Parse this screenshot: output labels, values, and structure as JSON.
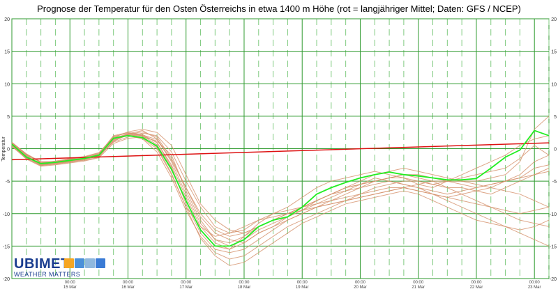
{
  "chart_data": {
    "type": "line",
    "title": "Prognose der Temperatur für den Osten Österreichs in etwa 1400 m Höhe (rot = langjähriger Mittel; Daten: GFS / NCEP)",
    "ylabel": "Temperatur",
    "ylim": [
      -20,
      20
    ],
    "yticks": [
      20,
      15,
      10,
      5,
      0,
      -5,
      -10,
      -15,
      -20
    ],
    "xlim_days": [
      14.0,
      23.25
    ],
    "x_tick_labels": [
      {
        "time": "00:00",
        "date": "15 Mar"
      },
      {
        "time": "00:00",
        "date": "16 Mar"
      },
      {
        "time": "00:00",
        "date": "17 Mar"
      },
      {
        "time": "00:00",
        "date": "18 Mar"
      },
      {
        "time": "00:00",
        "date": "19 Mar"
      },
      {
        "time": "00:00",
        "date": "20 Mar"
      },
      {
        "time": "00:00",
        "date": "21 Mar"
      },
      {
        "time": "00:00",
        "date": "22 Mar"
      },
      {
        "time": "00:00",
        "date": "23 Mar"
      }
    ],
    "grid": true,
    "colors": {
      "mean": "#dd1111",
      "main": "#22ee22",
      "ensemble": "#d4906a",
      "grid_major": "#2e9a2e",
      "grid_minor": "#7fca7f"
    },
    "series": [
      {
        "role": "main",
        "x": [
          14.0,
          14.25,
          14.5,
          14.75,
          15.0,
          15.25,
          15.5,
          15.75,
          16.0,
          16.25,
          16.5,
          16.75,
          17.0,
          17.25,
          17.5,
          17.75,
          18.0,
          18.25,
          18.5,
          18.75,
          19.0,
          19.25,
          19.5,
          19.75,
          20.0,
          20.25,
          20.5,
          20.75,
          21.0,
          21.25,
          21.5,
          21.75,
          22.0,
          22.25,
          22.5,
          22.75,
          23.0,
          23.25
        ],
        "y": [
          0.7,
          -1.3,
          -2.3,
          -2.1,
          -1.8,
          -1.5,
          -1.0,
          1.6,
          2.0,
          1.7,
          0.4,
          -3.2,
          -8.0,
          -12.5,
          -15.0,
          -15.0,
          -14.0,
          -12.0,
          -11.0,
          -10.5,
          -9.0,
          -7.0,
          -6.0,
          -5.2,
          -4.5,
          -4.0,
          -3.6,
          -4.0,
          -4.2,
          -4.5,
          -4.8,
          -4.8,
          -4.6,
          -3.0,
          -1.3,
          -0.2,
          2.8,
          2.0
        ]
      },
      {
        "role": "mean",
        "x": [
          14.0,
          23.25
        ],
        "y": [
          -1.7,
          0.9
        ]
      },
      {
        "role": "ensemble",
        "x": [
          14.0,
          14.25,
          14.5,
          14.75,
          15.0,
          15.25,
          15.5,
          15.75,
          16.0,
          16.25,
          16.5,
          16.75,
          17.0,
          17.25,
          17.5,
          17.75,
          18.0,
          18.25,
          18.5,
          18.75,
          19.0,
          19.25,
          19.5,
          19.75,
          20.0,
          20.25,
          20.5,
          20.75,
          21.0,
          21.25,
          21.5,
          21.75,
          22.0,
          22.25,
          22.5,
          22.75,
          23.0,
          23.25
        ],
        "y": [
          0.8,
          -1.0,
          -2.0,
          -2.0,
          -1.6,
          -1.3,
          -0.8,
          2.0,
          2.5,
          2.2,
          0.9,
          -2.5,
          -7.5,
          -12.0,
          -14.5,
          -15.5,
          -13.5,
          -11.5,
          -10.0,
          -9.0,
          -7.5,
          -6.0,
          -5.0,
          -4.5,
          -4.0,
          -3.5,
          -4.0,
          -4.5,
          -5.5,
          -6.0,
          -5.0,
          -4.0,
          -3.0,
          -2.0,
          -1.0,
          0.5,
          1.5,
          2.0
        ]
      },
      {
        "role": "ensemble",
        "x": [
          14.0,
          14.25,
          14.5,
          14.75,
          15.0,
          15.25,
          15.5,
          15.75,
          16.0,
          16.25,
          16.5,
          16.75,
          17.0,
          17.25,
          17.5,
          17.75,
          18.0,
          18.25,
          18.5,
          18.75,
          19.0,
          19.25,
          19.5,
          19.75,
          20.0,
          20.25,
          20.5,
          20.75,
          21.0,
          21.25,
          21.5,
          21.75,
          22.0,
          22.25,
          22.5,
          22.75,
          23.0,
          23.25
        ],
        "y": [
          0.5,
          -1.5,
          -2.5,
          -2.3,
          -2.0,
          -1.8,
          -1.3,
          1.3,
          2.3,
          2.8,
          1.5,
          -1.8,
          -6.0,
          -10.5,
          -13.0,
          -14.0,
          -14.5,
          -13.0,
          -12.0,
          -10.5,
          -9.5,
          -8.0,
          -7.0,
          -6.5,
          -6.0,
          -5.5,
          -5.0,
          -5.5,
          -6.0,
          -6.5,
          -7.0,
          -6.5,
          -6.0,
          -5.5,
          -5.0,
          -4.5,
          -3.0,
          -2.5
        ]
      },
      {
        "role": "ensemble",
        "x": [
          14.0,
          14.25,
          14.5,
          14.75,
          15.0,
          15.25,
          15.5,
          15.75,
          16.0,
          16.25,
          16.5,
          16.75,
          17.0,
          17.25,
          17.5,
          17.75,
          18.0,
          18.25,
          18.5,
          18.75,
          19.0,
          19.25,
          19.5,
          19.75,
          20.0,
          20.25,
          20.5,
          20.75,
          21.0,
          21.25,
          21.5,
          21.75,
          22.0,
          22.25,
          22.5,
          22.75,
          23.0,
          23.25
        ],
        "y": [
          1.0,
          -0.8,
          -2.2,
          -1.9,
          -1.5,
          -1.2,
          -0.6,
          1.8,
          2.0,
          1.5,
          -0.5,
          -4.5,
          -9.5,
          -13.5,
          -16.0,
          -17.0,
          -16.5,
          -15.0,
          -13.5,
          -12.0,
          -11.0,
          -10.0,
          -9.0,
          -8.0,
          -7.5,
          -7.0,
          -6.5,
          -6.0,
          -6.5,
          -7.0,
          -7.5,
          -8.0,
          -8.5,
          -9.0,
          -9.5,
          -10.0,
          -9.5,
          -9.0
        ]
      },
      {
        "role": "ensemble",
        "x": [
          14.0,
          14.25,
          14.5,
          14.75,
          15.0,
          15.25,
          15.5,
          15.75,
          16.0,
          16.25,
          16.5,
          16.75,
          17.0,
          17.25,
          17.5,
          17.75,
          18.0,
          18.25,
          18.5,
          18.75,
          19.0,
          19.25,
          19.5,
          19.75,
          20.0,
          20.25,
          20.5,
          20.75,
          21.0,
          21.25,
          21.5,
          21.75,
          22.0,
          22.25,
          22.5,
          22.75,
          23.0,
          23.25
        ],
        "y": [
          0.6,
          -1.2,
          -2.6,
          -2.4,
          -2.1,
          -1.7,
          -1.1,
          1.0,
          1.8,
          2.4,
          2.0,
          -0.5,
          -5.0,
          -9.0,
          -12.0,
          -13.0,
          -12.5,
          -11.0,
          -10.0,
          -9.5,
          -9.0,
          -8.5,
          -8.0,
          -7.0,
          -6.0,
          -5.0,
          -4.5,
          -4.0,
          -4.5,
          -5.0,
          -6.0,
          -7.0,
          -8.0,
          -9.0,
          -10.0,
          -11.0,
          -11.5,
          -12.0
        ]
      },
      {
        "role": "ensemble",
        "x": [
          14.0,
          14.25,
          14.5,
          14.75,
          15.0,
          15.25,
          15.5,
          15.75,
          16.0,
          16.25,
          16.5,
          16.75,
          17.0,
          17.25,
          17.5,
          17.75,
          18.0,
          18.25,
          18.5,
          18.75,
          19.0,
          19.25,
          19.5,
          19.75,
          20.0,
          20.25,
          20.5,
          20.75,
          21.0,
          21.25,
          21.5,
          21.75,
          22.0,
          22.25,
          22.5,
          22.75,
          23.0,
          23.25
        ],
        "y": [
          0.9,
          -0.9,
          -2.1,
          -2.2,
          -1.9,
          -1.4,
          -0.9,
          1.5,
          2.2,
          2.0,
          1.0,
          -2.8,
          -8.5,
          -13.0,
          -15.5,
          -16.0,
          -15.5,
          -14.0,
          -12.5,
          -11.0,
          -10.0,
          -9.0,
          -8.5,
          -8.0,
          -7.0,
          -6.0,
          -5.5,
          -5.0,
          -5.0,
          -5.5,
          -6.0,
          -6.0,
          -6.5,
          -7.0,
          -6.0,
          -5.0,
          -4.0,
          -3.0
        ]
      },
      {
        "role": "ensemble",
        "x": [
          14.0,
          14.25,
          14.5,
          14.75,
          15.0,
          15.25,
          15.5,
          15.75,
          16.0,
          16.25,
          16.5,
          16.75,
          17.0,
          17.25,
          17.5,
          17.75,
          18.0,
          18.25,
          18.5,
          18.75,
          19.0,
          19.25,
          19.5,
          19.75,
          20.0,
          20.25,
          20.5,
          20.75,
          21.0,
          21.25,
          21.5,
          21.75,
          22.0,
          22.25,
          22.5,
          22.75,
          23.0,
          23.25
        ],
        "y": [
          0.4,
          -1.6,
          -2.7,
          -2.5,
          -2.2,
          -1.9,
          -1.4,
          0.8,
          1.6,
          1.8,
          1.2,
          -1.0,
          -6.5,
          -11.0,
          -14.0,
          -15.0,
          -14.0,
          -12.5,
          -11.5,
          -10.5,
          -9.5,
          -8.5,
          -7.5,
          -6.5,
          -5.5,
          -4.5,
          -5.0,
          -5.5,
          -6.0,
          -7.0,
          -8.0,
          -9.0,
          -10.0,
          -11.0,
          -12.0,
          -13.0,
          -14.0,
          -15.0
        ]
      },
      {
        "role": "ensemble",
        "x": [
          14.0,
          14.25,
          14.5,
          14.75,
          15.0,
          15.25,
          15.5,
          15.75,
          16.0,
          16.25,
          16.5,
          16.75,
          17.0,
          17.25,
          17.5,
          17.75,
          18.0,
          18.25,
          18.5,
          18.75,
          19.0,
          19.25,
          19.5,
          19.75,
          20.0,
          20.25,
          20.5,
          20.75,
          21.0,
          21.25,
          21.5,
          21.75,
          22.0,
          22.25,
          22.5,
          22.75,
          23.0,
          23.25
        ],
        "y": [
          0.7,
          -1.1,
          -2.4,
          -2.2,
          -1.7,
          -1.6,
          -1.2,
          1.7,
          2.6,
          3.0,
          2.5,
          0.5,
          -4.0,
          -8.5,
          -11.0,
          -12.5,
          -13.0,
          -12.0,
          -11.0,
          -10.0,
          -9.0,
          -8.0,
          -7.0,
          -6.0,
          -5.5,
          -5.0,
          -4.5,
          -4.5,
          -5.0,
          -5.5,
          -5.0,
          -4.5,
          -4.0,
          -3.5,
          -3.0,
          -1.5,
          0.5,
          -1.0
        ]
      },
      {
        "role": "ensemble",
        "x": [
          14.0,
          14.25,
          14.5,
          14.75,
          15.0,
          15.25,
          15.5,
          15.75,
          16.0,
          16.25,
          16.5,
          16.75,
          17.0,
          17.25,
          17.5,
          17.75,
          18.0,
          18.25,
          18.5,
          18.75,
          19.0,
          19.25,
          19.5,
          19.75,
          20.0,
          20.25,
          20.5,
          20.75,
          21.0,
          21.25,
          21.5,
          21.75,
          22.0,
          22.25,
          22.5,
          22.75,
          23.0,
          23.25
        ],
        "y": [
          0.3,
          -1.4,
          -2.3,
          -2.0,
          -1.8,
          -1.5,
          -1.0,
          1.2,
          2.1,
          1.9,
          0.2,
          -3.8,
          -9.0,
          -13.8,
          -16.5,
          -18.0,
          -17.5,
          -16.0,
          -14.5,
          -13.0,
          -11.5,
          -10.5,
          -9.5,
          -8.5,
          -8.0,
          -7.5,
          -7.0,
          -6.5,
          -7.0,
          -8.0,
          -9.0,
          -10.0,
          -11.0,
          -11.5,
          -12.0,
          -12.5,
          -12.0,
          -11.0
        ]
      },
      {
        "role": "ensemble",
        "x": [
          14.0,
          14.25,
          14.5,
          14.75,
          15.0,
          15.25,
          15.5,
          15.75,
          16.0,
          16.25,
          16.5,
          16.75,
          17.0,
          17.25,
          17.5,
          17.75,
          18.0,
          18.25,
          18.5,
          18.75,
          19.0,
          19.25,
          19.5,
          19.75,
          20.0,
          20.25,
          20.5,
          20.75,
          21.0,
          21.25,
          21.5,
          21.75,
          22.0,
          22.25,
          22.5,
          22.75,
          23.0,
          23.25
        ],
        "y": [
          0.8,
          -1.0,
          -2.5,
          -2.3,
          -2.0,
          -1.6,
          -1.1,
          1.9,
          2.4,
          2.1,
          1.4,
          -2.0,
          -7.0,
          -11.5,
          -14.0,
          -14.5,
          -13.5,
          -12.0,
          -11.0,
          -10.0,
          -9.0,
          -8.0,
          -7.0,
          -6.0,
          -5.0,
          -4.0,
          -3.5,
          -3.0,
          -3.5,
          -4.0,
          -4.5,
          -5.0,
          -5.5,
          -6.0,
          -5.0,
          -4.0,
          -2.0,
          -1.0
        ]
      },
      {
        "role": "ensemble",
        "x": [
          14.0,
          14.25,
          14.5,
          14.75,
          15.0,
          15.25,
          15.5,
          15.75,
          16.0,
          16.25,
          16.5,
          16.75,
          17.0,
          17.25,
          17.5,
          17.75,
          18.0,
          18.25,
          18.5,
          18.75,
          19.0,
          19.25,
          19.5,
          19.75,
          20.0,
          20.25,
          20.5,
          20.75,
          21.0,
          21.25,
          21.5,
          21.75,
          22.0,
          22.25,
          22.5,
          22.75,
          23.0,
          23.25
        ],
        "y": [
          0.6,
          -1.3,
          -2.2,
          -2.1,
          -1.7,
          -1.4,
          -0.9,
          1.4,
          2.0,
          1.6,
          0.0,
          -4.0,
          -9.0,
          -12.0,
          -13.5,
          -13.0,
          -12.0,
          -11.0,
          -10.5,
          -10.0,
          -9.5,
          -9.0,
          -8.5,
          -8.0,
          -7.5,
          -7.0,
          -6.5,
          -6.0,
          -5.5,
          -5.0,
          -5.0,
          -5.5,
          -6.0,
          -5.5,
          -5.0,
          -4.5,
          -4.0,
          -3.5
        ]
      },
      {
        "role": "ensemble",
        "x": [
          14.0,
          14.25,
          14.5,
          14.75,
          15.0,
          15.25,
          15.5,
          15.75,
          16.0,
          16.25,
          16.5,
          16.75,
          17.0,
          17.25,
          17.5,
          17.75,
          18.0,
          18.25,
          18.5,
          18.75,
          19.0,
          19.25,
          19.5,
          19.75,
          20.0,
          20.25,
          20.5,
          20.75,
          21.0,
          21.25,
          21.5,
          21.75,
          22.0,
          22.25,
          22.5,
          22.75,
          23.0,
          23.25
        ],
        "y": [
          0.5,
          -1.5,
          -2.6,
          -2.3,
          -1.9,
          -1.6,
          -1.2,
          1.1,
          2.2,
          2.6,
          1.8,
          -1.5,
          -6.0,
          -10.0,
          -12.5,
          -13.5,
          -13.0,
          -12.0,
          -11.0,
          -10.0,
          -9.0,
          -8.0,
          -7.0,
          -6.0,
          -5.5,
          -5.0,
          -4.5,
          -4.0,
          -4.0,
          -4.5,
          -5.0,
          -5.0,
          -5.0,
          -4.5,
          -4.0,
          -2.0,
          3.0,
          5.0
        ]
      },
      {
        "role": "ensemble",
        "x": [
          14.0,
          14.25,
          14.5,
          14.75,
          15.0,
          15.25,
          15.5,
          15.75,
          16.0,
          16.25,
          16.5,
          16.75,
          17.0,
          17.25,
          17.5,
          17.75,
          18.0,
          18.25,
          18.5,
          18.75,
          19.0,
          19.25,
          19.5,
          19.75,
          20.0,
          20.25,
          20.5,
          20.75,
          21.0,
          21.25,
          21.5,
          21.75,
          22.0,
          22.25,
          22.5,
          22.75,
          23.0,
          23.25
        ],
        "y": [
          0.9,
          -0.8,
          -2.0,
          -2.0,
          -1.6,
          -1.3,
          -0.7,
          1.6,
          2.3,
          2.0,
          0.6,
          -3.0,
          -8.0,
          -12.5,
          -15.0,
          -15.5,
          -14.5,
          -13.0,
          -12.0,
          -11.0,
          -10.0,
          -9.0,
          -8.0,
          -7.5,
          -7.0,
          -6.5,
          -6.0,
          -6.0,
          -6.5,
          -7.0,
          -7.5,
          -7.0,
          -6.5,
          -6.0,
          -6.5,
          -7.0,
          -8.0,
          -9.0
        ]
      }
    ]
  }
}
